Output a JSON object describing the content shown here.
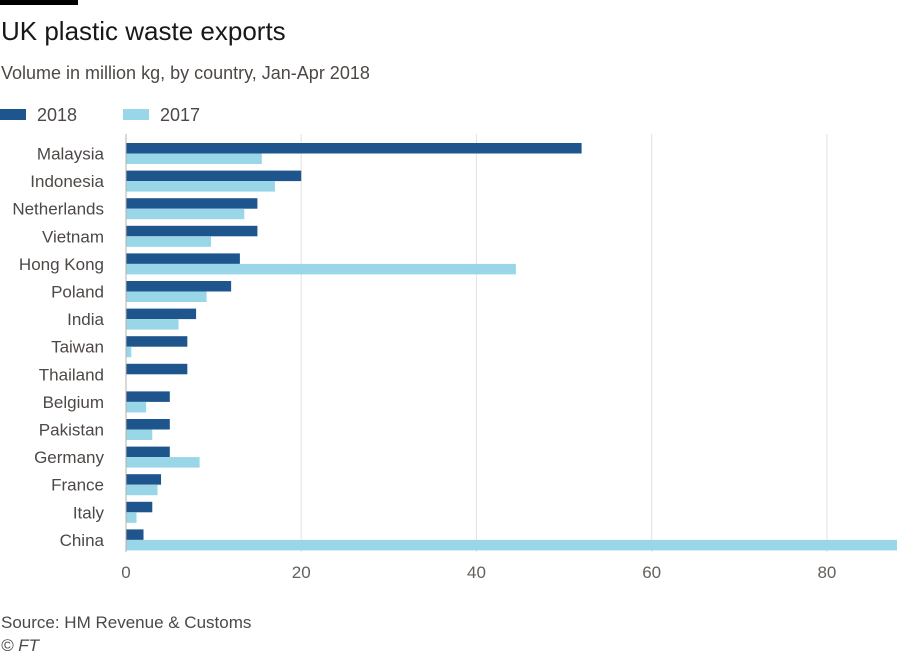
{
  "header": {
    "title": "UK plastic waste exports",
    "subtitle": "Volume in million kg, by country, Jan-Apr 2018"
  },
  "legend": [
    {
      "label": "2018",
      "color": "#1e558c"
    },
    {
      "label": "2017",
      "color": "#99d6e8"
    }
  ],
  "chart_data": {
    "type": "bar",
    "orientation": "horizontal",
    "title": "UK plastic waste exports",
    "subtitle": "Volume in million kg, by country, Jan-Apr 2018",
    "xlabel": "",
    "ylabel": "",
    "xlim": [
      0,
      88
    ],
    "xticks": [
      0,
      20,
      40,
      60,
      80
    ],
    "grid": true,
    "legend_position": "top-left",
    "categories": [
      "Malaysia",
      "Indonesia",
      "Netherlands",
      "Vietnam",
      "Hong Kong",
      "Poland",
      "India",
      "Taiwan",
      "Thailand",
      "Belgium",
      "Pakistan",
      "Germany",
      "France",
      "Italy",
      "China"
    ],
    "series": [
      {
        "name": "2018",
        "color": "#1e558c",
        "values": [
          52,
          20,
          15,
          15,
          13,
          12,
          8,
          7,
          7,
          5,
          5,
          5,
          4,
          3,
          2
        ]
      },
      {
        "name": "2017",
        "color": "#99d6e8",
        "values": [
          15.5,
          17,
          13.5,
          9.7,
          44.5,
          9.2,
          6,
          0.6,
          0,
          2.3,
          3,
          8.4,
          3.6,
          1.2,
          88
        ]
      }
    ]
  },
  "footer": {
    "source": "Source: HM Revenue & Customs",
    "copyright": "© FT"
  }
}
